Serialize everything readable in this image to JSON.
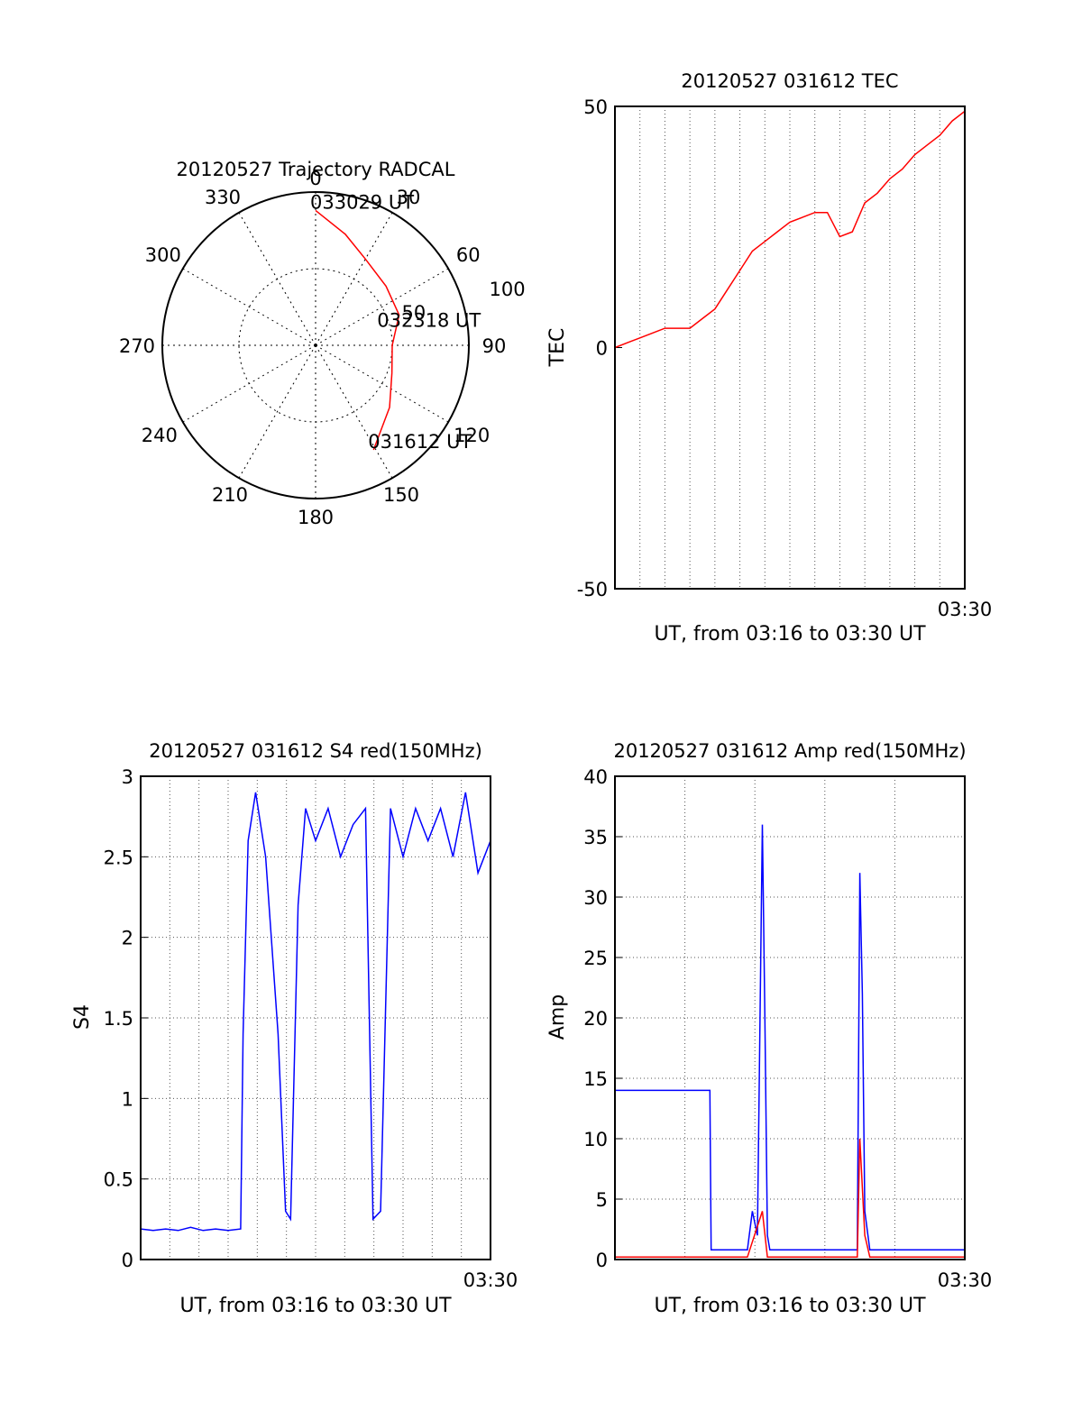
{
  "chart_data": [
    {
      "type": "polar",
      "title": "20120527 Trajectory RADCAL",
      "angle_labels": [
        "0",
        "30",
        "60",
        "90",
        "120",
        "150",
        "180",
        "210",
        "240",
        "270",
        "300",
        "330"
      ],
      "radial_labels": [
        "50",
        "100"
      ],
      "radial_max": 100,
      "grid": true,
      "trajectory_color": "#ff0000",
      "trajectory": [
        {
          "az": 0,
          "r": 88
        },
        {
          "az": 15,
          "r": 75
        },
        {
          "az": 30,
          "r": 65
        },
        {
          "az": 50,
          "r": 60
        },
        {
          "az": 70,
          "r": 58
        },
        {
          "az": 90,
          "r": 50
        },
        {
          "az": 110,
          "r": 53
        },
        {
          "az": 130,
          "r": 63
        },
        {
          "az": 151,
          "r": 78
        }
      ],
      "annotations": [
        {
          "text": "033029 UT",
          "az": 0,
          "r": 88
        },
        {
          "text": "032318 UT",
          "az": 76,
          "r": 45
        },
        {
          "text": "031612 UT",
          "az": 151,
          "r": 78
        }
      ]
    },
    {
      "type": "line",
      "title": "20120527 031612 TEC",
      "xlabel": "UT, from 03:16 to 03:30 UT",
      "ylabel": "TEC",
      "xlim": [
        0,
        14
      ],
      "ylim": [
        -50,
        50
      ],
      "yticks": [
        "50",
        "0",
        "-50"
      ],
      "xtick_labels": [
        "03:30"
      ],
      "grid": true,
      "series": [
        {
          "color": "#ff0000",
          "x": [
            0,
            0.5,
            1,
            1.5,
            2,
            2.5,
            3,
            3.5,
            4,
            4.5,
            5,
            5.5,
            6,
            6.5,
            7,
            7.5,
            8,
            8.5,
            9,
            9.5,
            10,
            10.5,
            11,
            11.5,
            12,
            12.5,
            13,
            13.5,
            14
          ],
          "y": [
            0,
            1,
            2,
            3,
            4,
            4,
            4,
            6,
            8,
            12,
            16,
            20,
            22,
            24,
            26,
            27,
            28,
            28,
            23,
            24,
            30,
            32,
            35,
            37,
            40,
            42,
            44,
            47,
            49
          ]
        }
      ]
    },
    {
      "type": "line",
      "title": "20120527 031612 S4 red(150MHz)",
      "xlabel": "UT, from 03:16 to 03:30 UT",
      "ylabel": "S4",
      "xlim": [
        0,
        14
      ],
      "ylim": [
        0,
        3
      ],
      "yticks": [
        "3",
        "2.5",
        "2",
        "1.5",
        "1",
        "0.5",
        "0"
      ],
      "xtick_labels": [
        "03:30"
      ],
      "grid": true,
      "series": [
        {
          "color": "#0000ff",
          "x": [
            0,
            0.5,
            1,
            1.5,
            2,
            2.5,
            3,
            3.5,
            4,
            4.1,
            4.3,
            4.6,
            5,
            5.5,
            5.8,
            6,
            6.3,
            6.6,
            7,
            7.5,
            8,
            8.5,
            9,
            9.3,
            9.6,
            10,
            10.5,
            11,
            11.5,
            12,
            12.5,
            13,
            13.5,
            14
          ],
          "y": [
            0.19,
            0.18,
            0.19,
            0.18,
            0.2,
            0.18,
            0.19,
            0.18,
            0.19,
            1.4,
            2.6,
            2.9,
            2.5,
            1.4,
            0.3,
            0.25,
            2.2,
            2.8,
            2.6,
            2.8,
            2.5,
            2.7,
            2.8,
            0.25,
            0.3,
            2.8,
            2.5,
            2.8,
            2.6,
            2.8,
            2.5,
            2.9,
            2.4,
            2.6
          ]
        }
      ]
    },
    {
      "type": "line",
      "title": "20120527 031612 Amp red(150MHz)",
      "xlabel": "UT, from 03:16 to 03:30 UT",
      "ylabel": "Amp",
      "xlim": [
        0,
        14
      ],
      "ylim": [
        0,
        40
      ],
      "yticks": [
        "40",
        "35",
        "30",
        "25",
        "20",
        "15",
        "10",
        "5",
        "0"
      ],
      "xtick_labels": [
        "03:30"
      ],
      "grid": true,
      "series": [
        {
          "color": "#0000ff",
          "x": [
            0,
            3.8,
            3.85,
            5.3,
            5.5,
            5.7,
            5.9,
            6.0,
            6.1,
            6.2,
            6.4,
            9.7,
            9.8,
            9.9,
            10.0,
            10.2,
            14
          ],
          "y": [
            14,
            14,
            0.8,
            0.8,
            4,
            2,
            36,
            20,
            2,
            0.8,
            0.8,
            0.8,
            32,
            22,
            4,
            0.8,
            0.8
          ]
        },
        {
          "color": "#ff0000",
          "x": [
            0,
            5.3,
            5.9,
            6.1,
            6.3,
            9.7,
            9.8,
            10.0,
            10.2,
            14
          ],
          "y": [
            0.2,
            0.2,
            4,
            0.2,
            0.2,
            0.2,
            10,
            2,
            0.2,
            0.2
          ]
        }
      ]
    }
  ]
}
